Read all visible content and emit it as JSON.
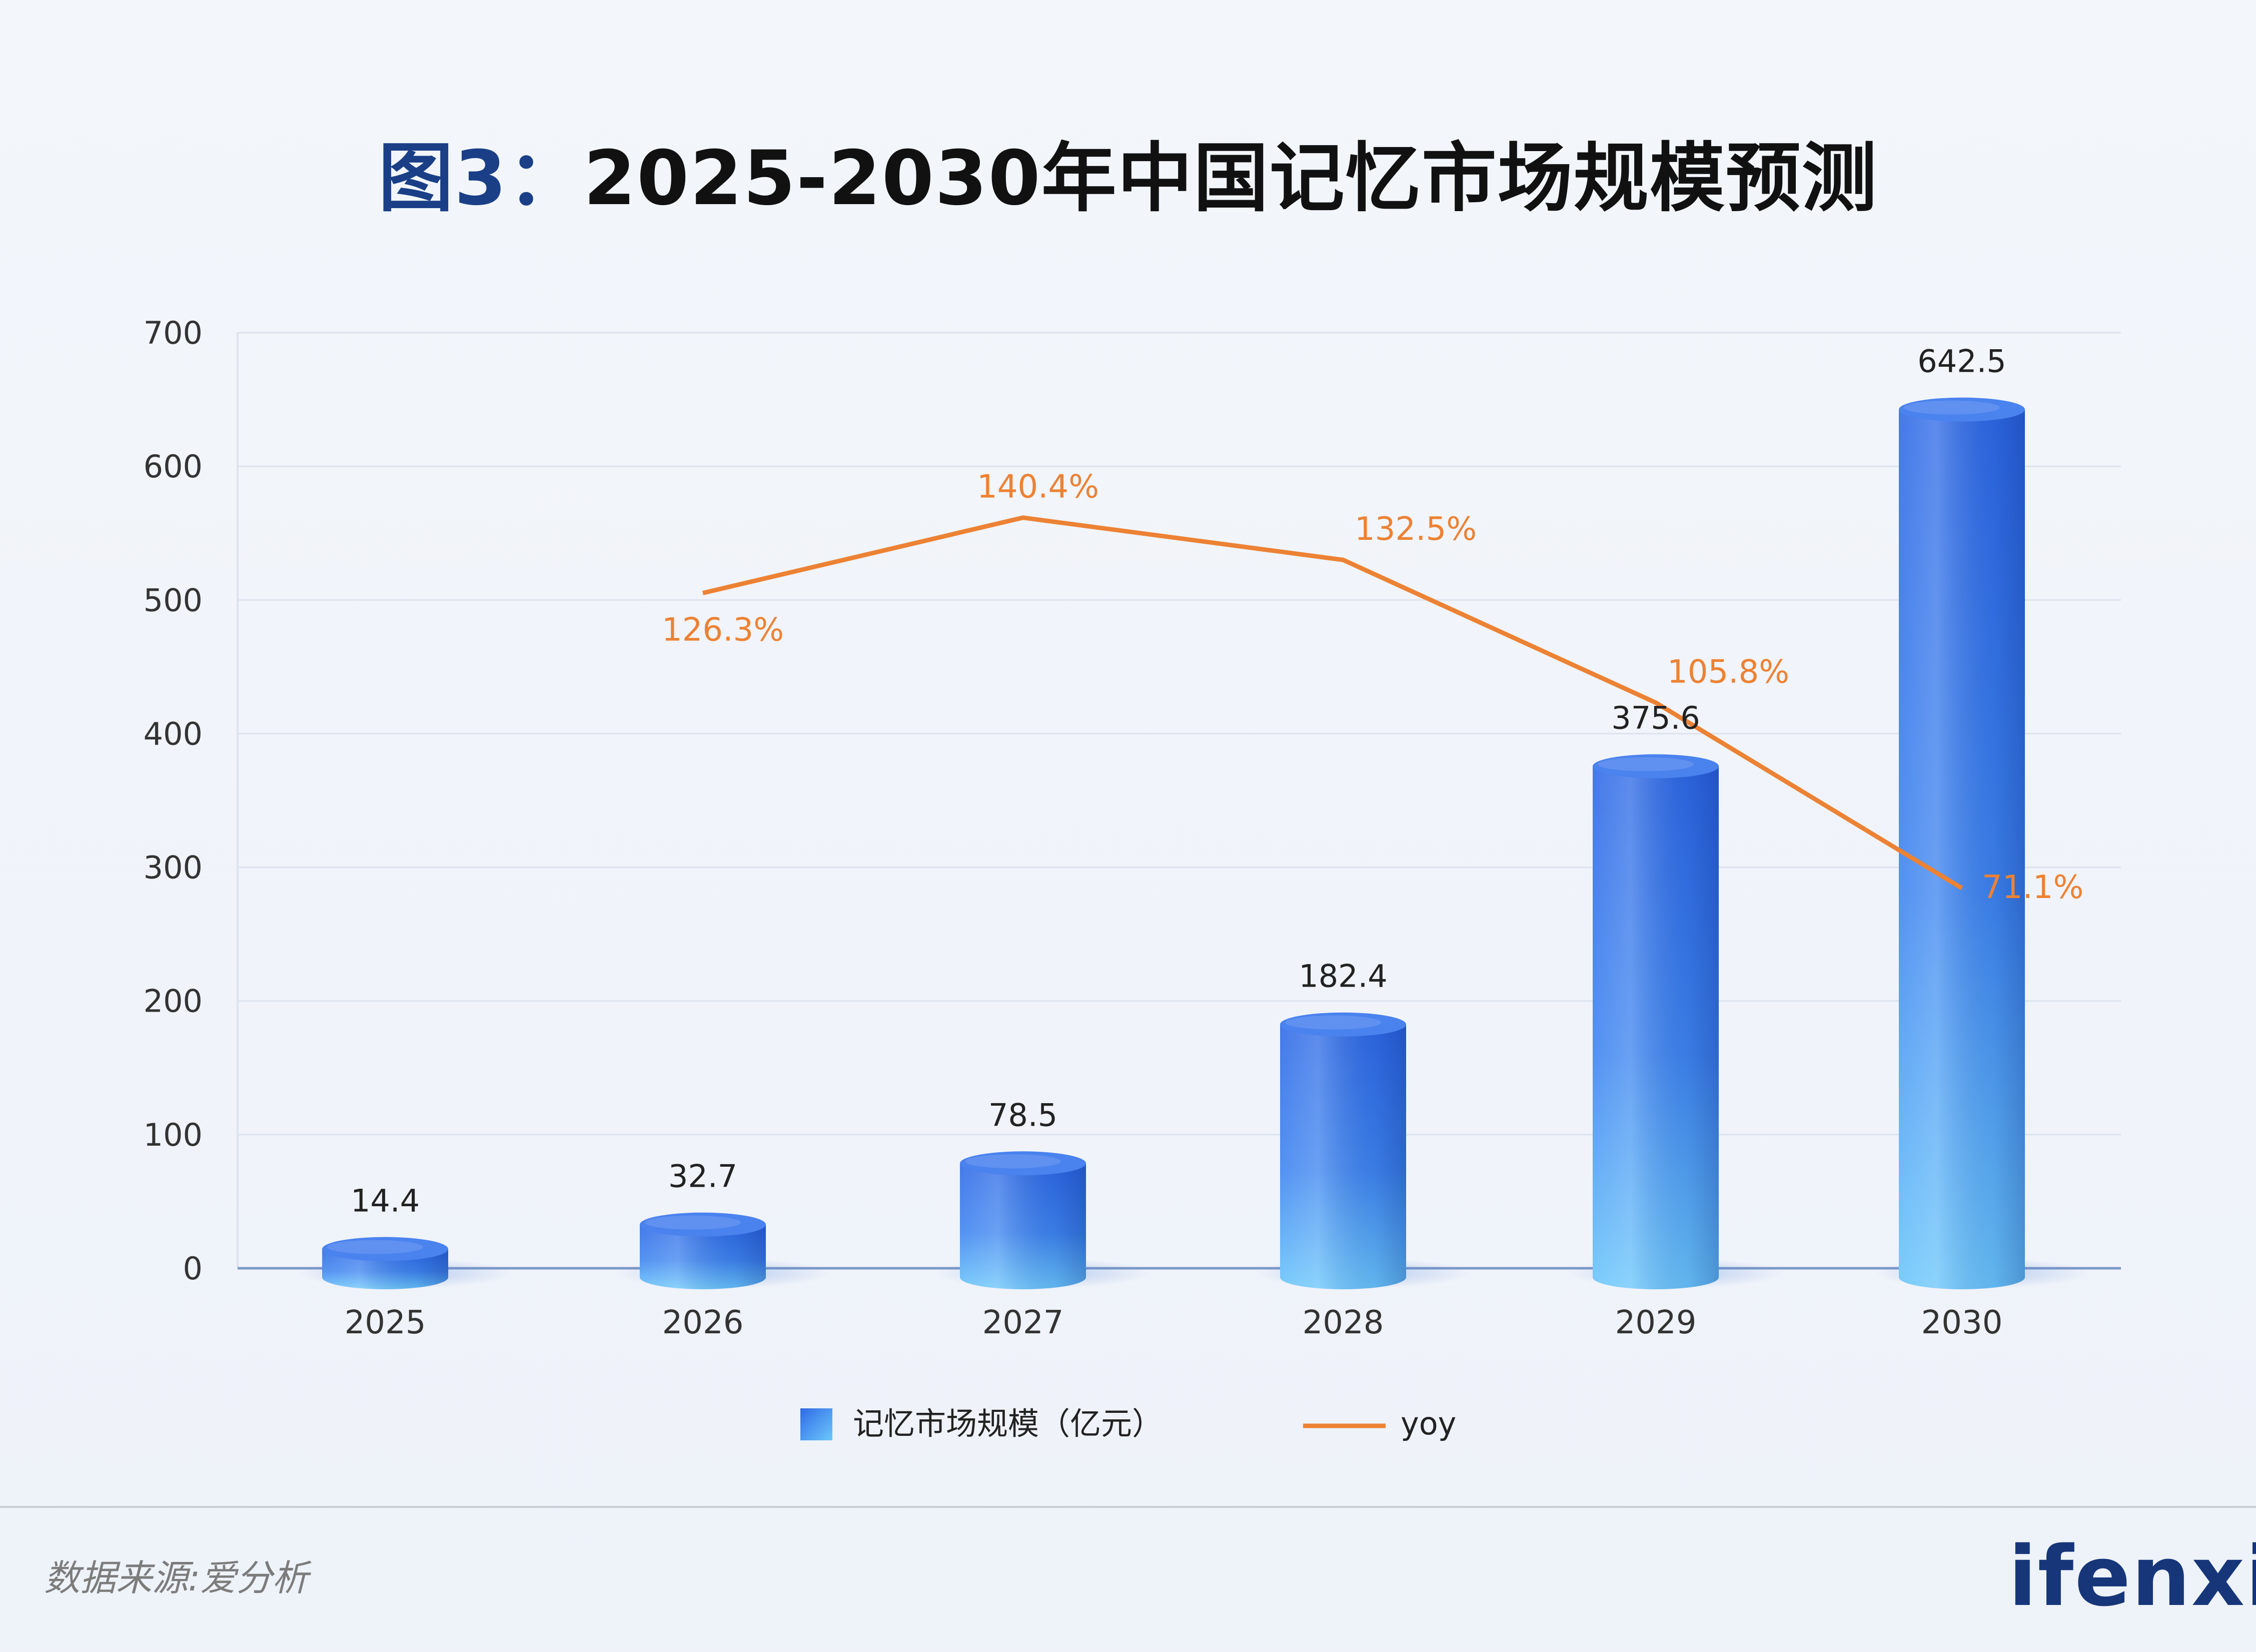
{
  "title": {
    "prefix": "图3：",
    "text": "2025-2030年中国记忆市场规模预测"
  },
  "source_label": "数据来源:爱分析",
  "brand": "ifenxi",
  "colors": {
    "bar_top": "#4a82ee",
    "bar_dark": "#1f54d2",
    "bar_light": "#6cc7fb",
    "line": "#ec8234",
    "grid": "#dde3ee",
    "axis": "#7c98c7",
    "title_accent": "#1a3f86",
    "brand": "#17367a"
  },
  "chart_data": {
    "type": "bar",
    "categories": [
      "2025",
      "2026",
      "2027",
      "2028",
      "2029",
      "2030"
    ],
    "ylim": [
      0,
      700
    ],
    "yticks": [
      "0",
      "100",
      "200",
      "300",
      "400",
      "500",
      "600",
      "700"
    ],
    "grid": true,
    "legend_position": "bottom",
    "series": [
      {
        "name": "记忆市场规模（亿元）",
        "type": "bar",
        "values": [
          14.4,
          32.7,
          78.5,
          182.4,
          375.6,
          642.5
        ],
        "labels": [
          "14.4",
          "32.7",
          "78.5",
          "182.4",
          "375.6",
          "642.5"
        ]
      },
      {
        "name": "yoy",
        "type": "line",
        "values": [
          null,
          126.3,
          140.4,
          132.5,
          105.8,
          71.1
        ],
        "labels": [
          "",
          "126.3%",
          "140.4%",
          "132.5%",
          "105.8%",
          "71.1%"
        ]
      }
    ]
  }
}
